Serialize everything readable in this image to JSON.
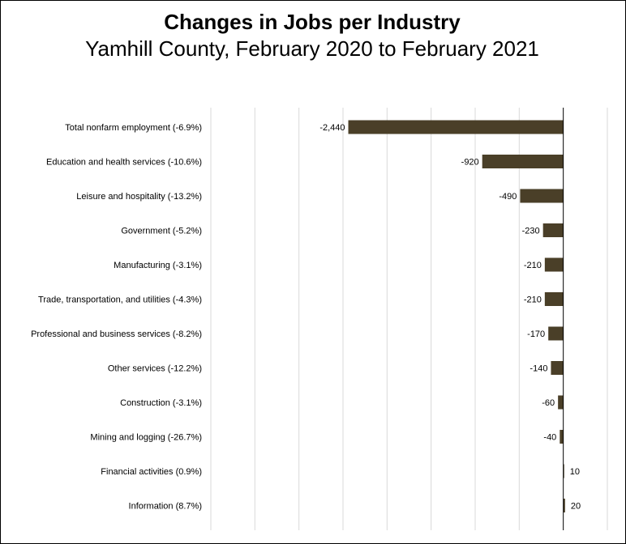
{
  "chart_data": {
    "type": "bar",
    "orientation": "horizontal",
    "title": "Changes in Jobs per Industry",
    "subtitle": "Yamhill County, February 2020 to February 2021",
    "categories": [
      "Total nonfarm employment (-6.9%)",
      "Education and health services (-10.6%)",
      "Leisure and hospitality (-13.2%)",
      "Government (-5.2%)",
      "Manufacturing (-3.1%)",
      "Trade, transportation, and utilities (-4.3%)",
      "Professional and business services (-8.2%)",
      "Other services (-12.2%)",
      "Construction (-3.1%)",
      "Mining and logging (-26.7%)",
      "Financial activities (0.9%)",
      "Information (8.7%)"
    ],
    "values": [
      -2440,
      -920,
      -490,
      -230,
      -210,
      -210,
      -170,
      -140,
      -60,
      -40,
      10,
      20
    ],
    "value_labels": [
      "-2,440",
      "-920",
      "-490",
      "-230",
      "-210",
      "-210",
      "-170",
      "-140",
      "-60",
      "-40",
      "10",
      "20"
    ],
    "xlim": [
      -4000,
      500
    ],
    "gridlines": true,
    "bar_color": "#4a3f28",
    "grid_color": "#d9d9d9"
  }
}
